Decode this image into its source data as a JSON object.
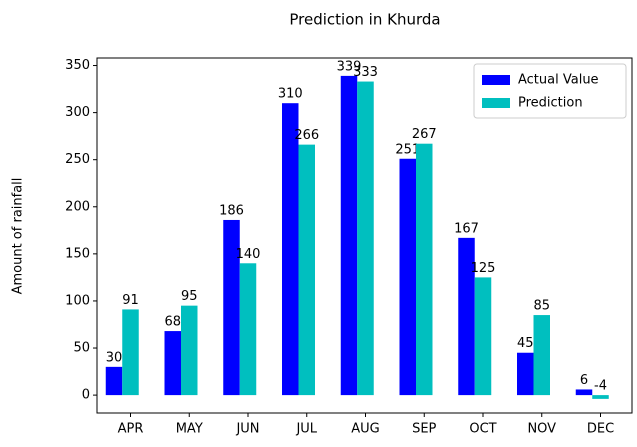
{
  "chart_data": {
    "type": "bar",
    "title": "Prediction in Khurda",
    "ylabel": "Amount of rainfall",
    "categories": [
      "APR",
      "MAY",
      "JUN",
      "JUL",
      "AUG",
      "SEP",
      "OCT",
      "NOV",
      "DEC"
    ],
    "series": [
      {
        "name": "Actual Value",
        "color": "#0000ff",
        "values": [
          30,
          68,
          186,
          310,
          339,
          251,
          167,
          45,
          6
        ]
      },
      {
        "name": "Prediction",
        "color": "#00bfbf",
        "values": [
          91,
          95,
          140,
          266,
          333,
          267,
          125,
          85,
          -4
        ]
      }
    ],
    "ylim": [
      -19,
      358
    ],
    "yticks": [
      0,
      50,
      100,
      150,
      200,
      250,
      300,
      350
    ],
    "legend": "upper right"
  }
}
